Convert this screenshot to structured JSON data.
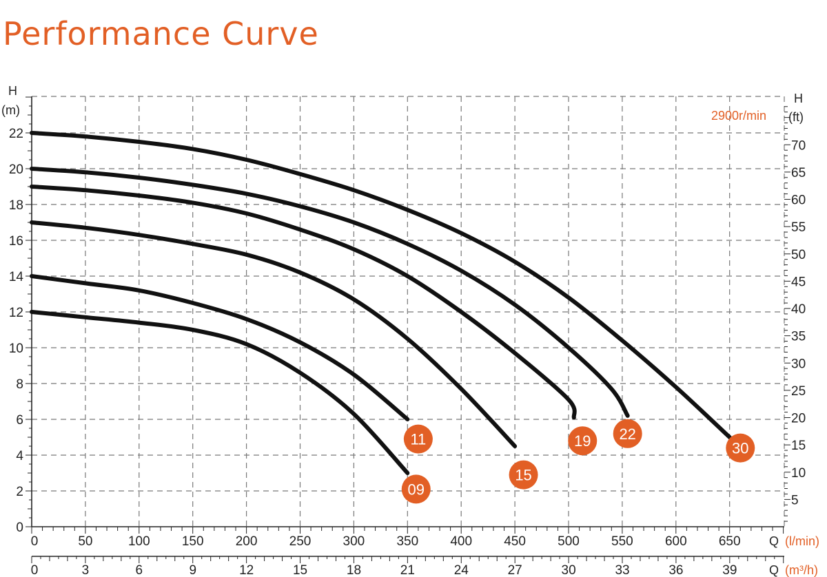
{
  "title": "Performance Curve",
  "chart_data": {
    "type": "line",
    "speed_label": "2900r/min",
    "accent_color": "#e25f25",
    "curve_color": "#111111",
    "y_left": {
      "title": "H",
      "unit": "(m)",
      "range": [
        0,
        24
      ],
      "ticks": [
        0,
        2,
        4,
        6,
        8,
        10,
        12,
        14,
        16,
        18,
        20,
        22
      ]
    },
    "y_right": {
      "title": "H",
      "unit": "(ft)",
      "ticks": [
        5,
        10,
        15,
        20,
        25,
        30,
        35,
        40,
        45,
        50,
        55,
        60,
        65,
        70
      ]
    },
    "x_primary": {
      "title": "Q",
      "unit": "(l/min)",
      "range": [
        0,
        700
      ],
      "ticks": [
        0,
        50,
        100,
        150,
        200,
        250,
        300,
        350,
        400,
        450,
        500,
        550,
        600,
        650
      ]
    },
    "x_secondary": {
      "title": "Q",
      "unit": "(m³/h)",
      "ticks": [
        0,
        3,
        6,
        9,
        12,
        15,
        18,
        21,
        24,
        27,
        30,
        33,
        36,
        39
      ]
    },
    "grid": true,
    "series": [
      {
        "name": "09",
        "label_at": [
          358,
          2.1
        ],
        "points": [
          [
            0,
            12
          ],
          [
            50,
            11.7
          ],
          [
            100,
            11.4
          ],
          [
            150,
            11
          ],
          [
            200,
            10.2
          ],
          [
            250,
            8.6
          ],
          [
            300,
            6.3
          ],
          [
            350,
            3
          ]
        ]
      },
      {
        "name": "11",
        "label_at": [
          360,
          4.9
        ],
        "points": [
          [
            0,
            14
          ],
          [
            50,
            13.6
          ],
          [
            100,
            13.2
          ],
          [
            150,
            12.5
          ],
          [
            200,
            11.6
          ],
          [
            250,
            10.3
          ],
          [
            300,
            8.5
          ],
          [
            350,
            6
          ]
        ]
      },
      {
        "name": "15",
        "label_at": [
          458,
          2.9
        ],
        "points": [
          [
            0,
            17
          ],
          [
            50,
            16.7
          ],
          [
            100,
            16.3
          ],
          [
            150,
            15.8
          ],
          [
            200,
            15.2
          ],
          [
            250,
            14.2
          ],
          [
            300,
            12.7
          ],
          [
            350,
            10.5
          ],
          [
            400,
            7.7
          ],
          [
            450,
            4.5
          ]
        ]
      },
      {
        "name": "19",
        "label_at": [
          513,
          4.8
        ],
        "points": [
          [
            0,
            19
          ],
          [
            50,
            18.8
          ],
          [
            100,
            18.5
          ],
          [
            150,
            18.1
          ],
          [
            200,
            17.5
          ],
          [
            250,
            16.6
          ],
          [
            300,
            15.5
          ],
          [
            350,
            14
          ],
          [
            400,
            12
          ],
          [
            450,
            9.7
          ],
          [
            500,
            7.1
          ],
          [
            505,
            6.1
          ]
        ]
      },
      {
        "name": "22",
        "label_at": [
          555,
          5.2
        ],
        "points": [
          [
            0,
            20
          ],
          [
            50,
            19.8
          ],
          [
            100,
            19.5
          ],
          [
            150,
            19.1
          ],
          [
            200,
            18.6
          ],
          [
            250,
            17.9
          ],
          [
            300,
            17
          ],
          [
            350,
            15.8
          ],
          [
            400,
            14.3
          ],
          [
            450,
            12.4
          ],
          [
            500,
            10
          ],
          [
            540,
            7.7
          ],
          [
            555,
            6.2
          ]
        ]
      },
      {
        "name": "30",
        "label_at": [
          660,
          4.4
        ],
        "points": [
          [
            0,
            22
          ],
          [
            50,
            21.8
          ],
          [
            100,
            21.5
          ],
          [
            150,
            21.1
          ],
          [
            200,
            20.5
          ],
          [
            250,
            19.7
          ],
          [
            300,
            18.8
          ],
          [
            350,
            17.7
          ],
          [
            400,
            16.4
          ],
          [
            450,
            14.8
          ],
          [
            500,
            12.8
          ],
          [
            550,
            10.4
          ],
          [
            600,
            7.8
          ],
          [
            650,
            5
          ]
        ]
      }
    ]
  }
}
